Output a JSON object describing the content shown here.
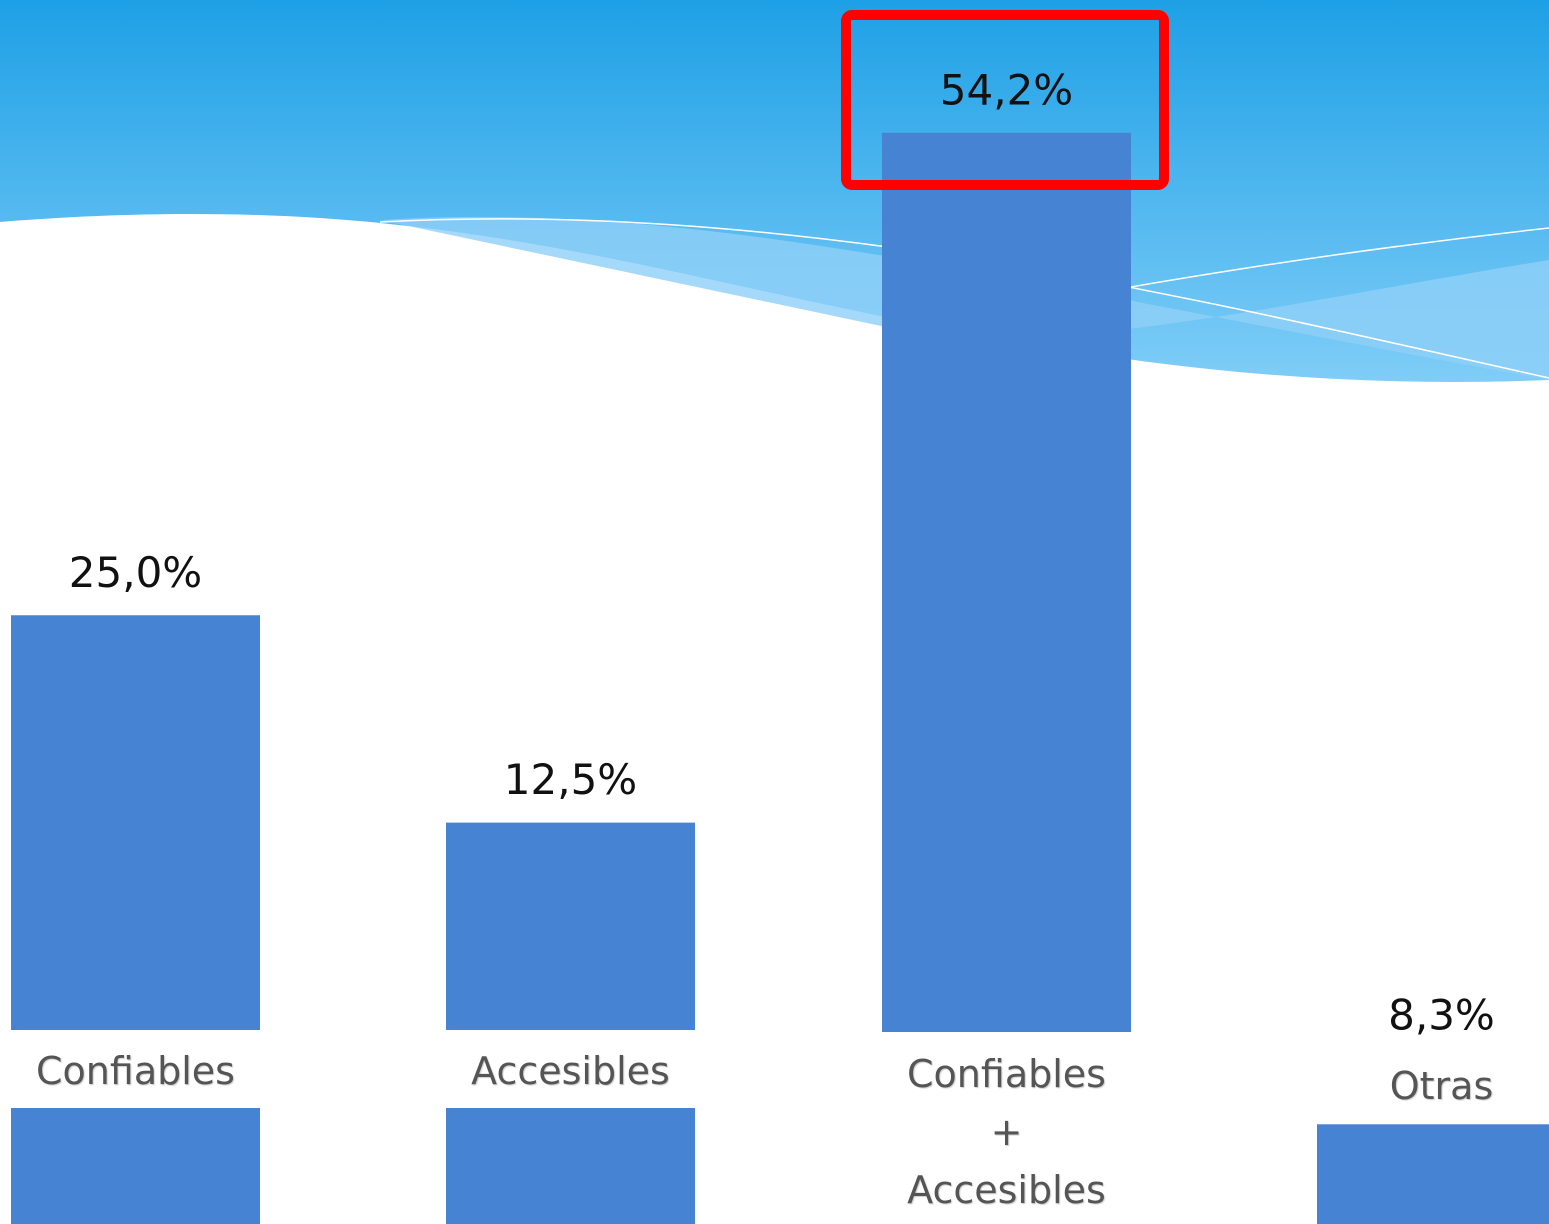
{
  "chart_data": {
    "type": "bar",
    "categories": [
      "Confiables",
      "Accesibles",
      "Confiables\n+\nAccesibles",
      "Otras"
    ],
    "values": [
      25.0,
      12.5,
      54.2,
      8.3
    ],
    "value_labels": [
      "25,0%",
      "12,5%",
      "54,2%",
      "8,3%"
    ],
    "color": "#4783d3"
  }
}
